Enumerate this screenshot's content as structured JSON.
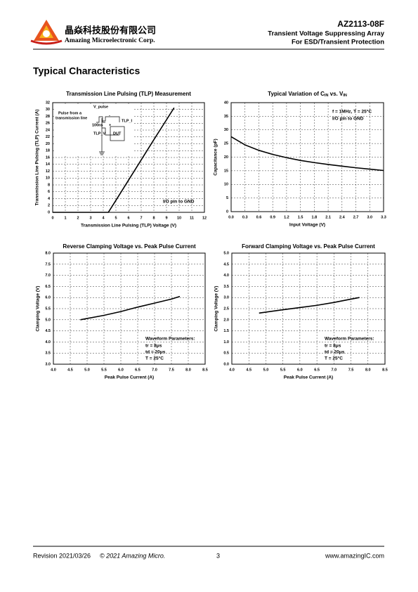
{
  "header": {
    "company_cn": "晶焱科技股份有限公司",
    "company_en": "Amazing Microelectronic Corp.",
    "part": "AZ2113-08F",
    "line1": "Transient Voltage Suppressing Array",
    "line2": "For ESD/Transient Protection"
  },
  "section_title": "Typical Characteristics",
  "chart_data": [
    {
      "type": "line",
      "title": "Transmission Line Pulsing (TLP) Measurement",
      "xlabel": "Transmission Line Pulsing (TLP) Voltage (V)",
      "ylabel": "Transmission Line Pulsing (TLP) Current (A)",
      "x": [
        0,
        4.4,
        5,
        6,
        7,
        8,
        9,
        9.6
      ],
      "values": [
        0,
        0,
        3.5,
        9.4,
        15.3,
        21.2,
        27,
        30.5
      ],
      "color": "#000000",
      "xlim": [
        0,
        12
      ],
      "xticks": [
        0,
        1,
        2,
        3,
        4,
        5,
        6,
        7,
        8,
        9,
        10,
        11,
        12
      ],
      "ylim": [
        0,
        32
      ],
      "yticks": [
        0,
        2,
        4,
        6,
        8,
        10,
        12,
        14,
        16,
        18,
        20,
        22,
        24,
        26,
        28,
        30,
        32
      ],
      "grid": true,
      "annotations": [
        "I/O pin to GND"
      ],
      "inset_labels": [
        "V_pulse",
        "Pulse from a",
        "transmission line",
        "100ns",
        "TLP_I",
        "TLP_V",
        "DUT",
        "+",
        "-"
      ]
    },
    {
      "type": "line",
      "title_parts": [
        "Typical Variation of C",
        "IN",
        " vs. V",
        "IN"
      ],
      "xlabel": "Input Voltage (V)",
      "ylabel": "Capacitance  (pF)",
      "x": [
        0,
        0.3,
        0.6,
        0.9,
        1.2,
        1.5,
        1.8,
        2.1,
        2.4,
        2.7,
        3.0,
        3.3
      ],
      "values": [
        27.5,
        24.5,
        22.5,
        21,
        19.8,
        18.8,
        18,
        17.3,
        16.7,
        16.1,
        15.6,
        15.1
      ],
      "color": "#000000",
      "xlim": [
        0,
        3.3
      ],
      "xticks": [
        {
          "value": 0,
          "label": "0.0"
        },
        0.3,
        0.6,
        0.9,
        1.2,
        1.5,
        1.8,
        2.1,
        2.4,
        2.7,
        {
          "value": 3,
          "label": "3.0"
        },
        3.3
      ],
      "ylim": [
        0,
        40
      ],
      "yticks": [
        0,
        5,
        10,
        15,
        20,
        25,
        30,
        35,
        40
      ],
      "grid": true,
      "annotations": [
        "f = 1MHz, T = 25°C",
        "I/O pin to GND"
      ]
    },
    {
      "type": "line",
      "title": "Reverse Clamping Voltage  vs. Peak Pulse Current",
      "xlabel": "Peak Pulse Current (A)",
      "ylabel": "Clamping Voltage (V)",
      "x": [
        4.8,
        5.5,
        6,
        6.5,
        7,
        7.5,
        7.75
      ],
      "values": [
        5.0,
        5.2,
        5.37,
        5.57,
        5.75,
        5.93,
        6.05
      ],
      "color": "#000000",
      "xlim": [
        4,
        8.5
      ],
      "xticks": [
        {
          "value": 4,
          "label": "4.0"
        },
        4.5,
        {
          "value": 5,
          "label": "5.0"
        },
        5.5,
        {
          "value": 6,
          "label": "6.0"
        },
        6.5,
        {
          "value": 7,
          "label": "7.0"
        },
        7.5,
        {
          "value": 8,
          "label": "8.0"
        },
        8.5
      ],
      "ylim": [
        3,
        8
      ],
      "yticks": [
        {
          "value": 3,
          "label": "3.0"
        },
        3.5,
        {
          "value": 4,
          "label": "4.0"
        },
        4.5,
        {
          "value": 5,
          "label": "5.0"
        },
        5.5,
        {
          "value": 6,
          "label": "6.0"
        },
        6.5,
        {
          "value": 7,
          "label": "7.0"
        },
        7.5,
        {
          "value": 8,
          "label": "8.0"
        }
      ],
      "grid": true,
      "annotations": [
        "Waveform Parameters:",
        "tr = 8μs",
        "td = 20μs",
        "T = 25°C"
      ]
    },
    {
      "type": "line",
      "title": "Forward Clamping Voltage  vs. Peak Pulse Current",
      "xlabel": "Peak Pulse Current (A)",
      "ylabel": "Clamping Voltage (V)",
      "x": [
        4.8,
        5.5,
        6,
        6.5,
        7,
        7.5,
        7.75
      ],
      "values": [
        2.3,
        2.45,
        2.55,
        2.65,
        2.78,
        2.93,
        3.0
      ],
      "color": "#000000",
      "xlim": [
        4,
        8.5
      ],
      "xticks": [
        {
          "value": 4,
          "label": "4.0"
        },
        4.5,
        {
          "value": 5,
          "label": "5.0"
        },
        5.5,
        {
          "value": 6,
          "label": "6.0"
        },
        6.5,
        {
          "value": 7,
          "label": "7.0"
        },
        7.5,
        {
          "value": 8,
          "label": "8.0"
        },
        8.5
      ],
      "ylim": [
        0,
        5
      ],
      "yticks": [
        {
          "value": 0,
          "label": "0.0"
        },
        0.5,
        {
          "value": 1,
          "label": "1.0"
        },
        1.5,
        {
          "value": 2,
          "label": "2.0"
        },
        2.5,
        {
          "value": 3,
          "label": "3.0"
        },
        3.5,
        {
          "value": 4,
          "label": "4.0"
        },
        4.5,
        {
          "value": 5,
          "label": "5.0"
        }
      ],
      "grid": true,
      "annotations": [
        "Waveform Parameters:",
        "tr = 8μs",
        "td = 20μs",
        "T = 25°C"
      ]
    }
  ],
  "footer": {
    "revision": "Revision 2021/03/26",
    "copyright": "© 2021 Amazing Micro.",
    "page": "3",
    "url": "www.amazingIC.com"
  }
}
